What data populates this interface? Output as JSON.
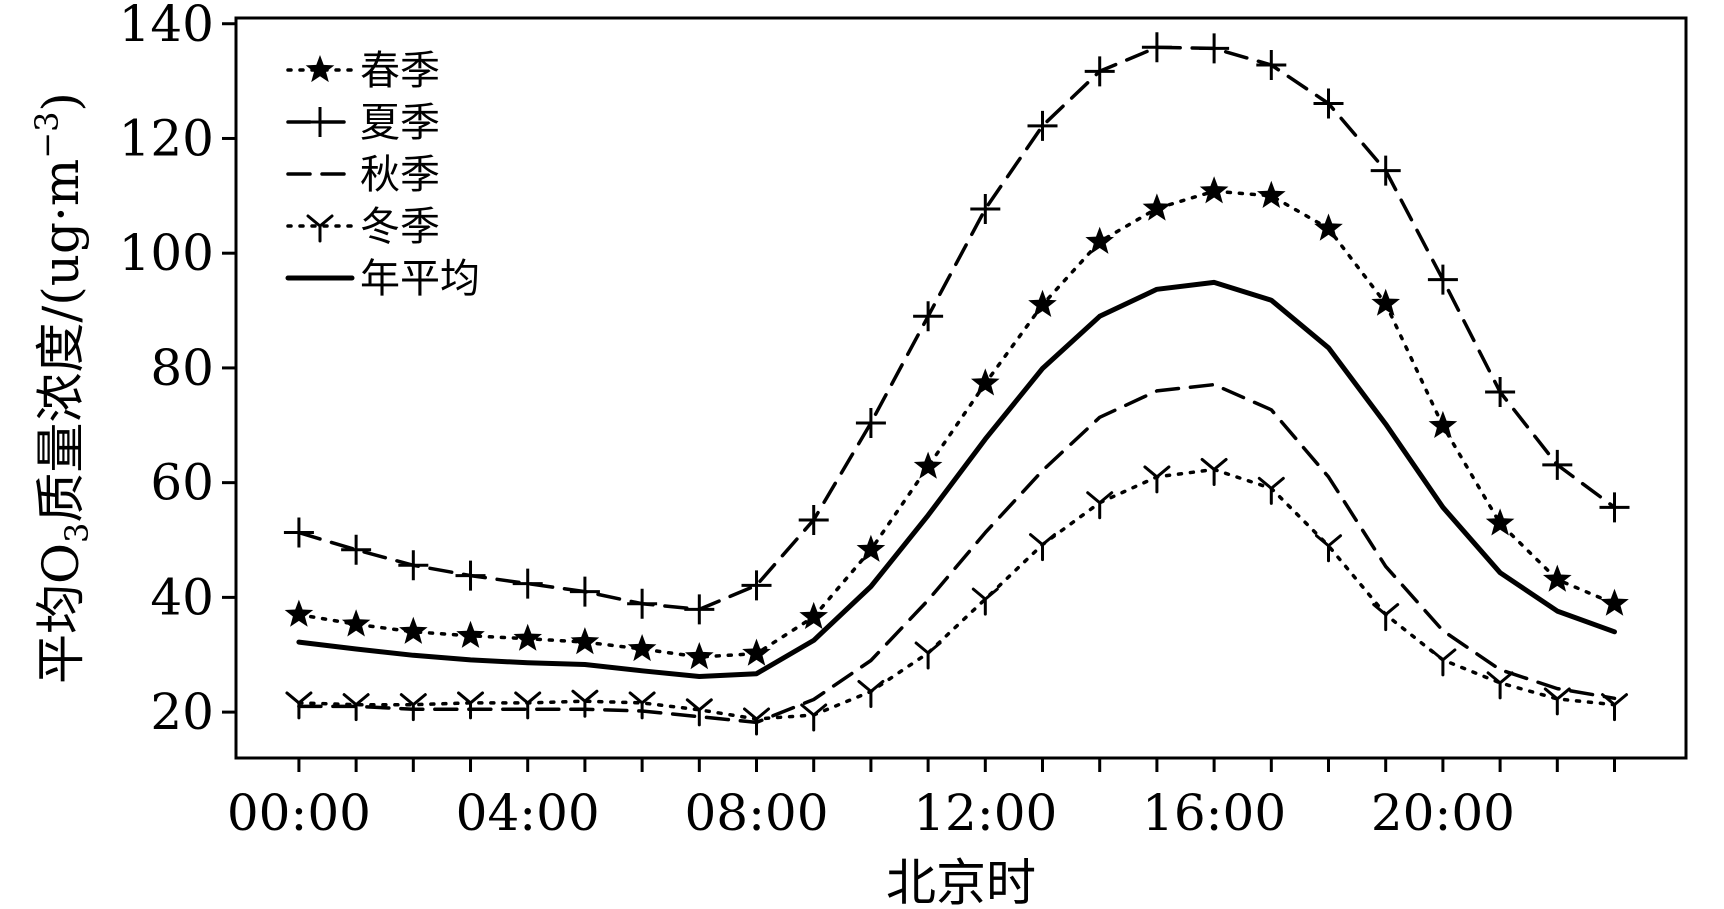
{
  "chart_data": {
    "type": "line",
    "title": "",
    "xlabel": "北京时",
    "ylabel": "平均O₃质量浓度/(ug·m⁻³)",
    "ylabel_parts": {
      "prefix": "平均O",
      "subscript": "3",
      "middle": "质量浓度/(ug·m",
      "superscript": "−3",
      "suffix": ")"
    },
    "x": [
      0,
      1,
      2,
      3,
      4,
      5,
      6,
      7,
      8,
      9,
      10,
      11,
      12,
      13,
      14,
      15,
      16,
      17,
      18,
      19,
      20,
      21,
      22,
      23
    ],
    "xlim": [
      -1.1,
      24.25
    ],
    "ylim": [
      12,
      141
    ],
    "xticks": [
      0,
      4,
      8,
      12,
      16,
      20
    ],
    "xticklabels": [
      "00:00",
      "04:00",
      "08:00",
      "12:00",
      "16:00",
      "20:00"
    ],
    "yticks": [
      20,
      40,
      60,
      80,
      100,
      120,
      140
    ],
    "yticklabels": [
      "20",
      "40",
      "60",
      "80",
      "100",
      "120",
      "140"
    ],
    "grid": false,
    "legend_position": "top-left",
    "series": [
      {
        "name": "春季",
        "style": "dotted",
        "marker": "star",
        "values": [
          37,
          35.3,
          34,
          33.3,
          32.8,
          32.2,
          31,
          29.6,
          30.2,
          36.6,
          48.3,
          62.8,
          77.3,
          91,
          102,
          107.8,
          110.8,
          110,
          104.3,
          91.2,
          69.9,
          52.9,
          43.1,
          38.9
        ]
      },
      {
        "name": "夏季",
        "style": "dashed",
        "marker": "plus",
        "values": [
          51.3,
          48.3,
          45.6,
          43.8,
          42.4,
          41,
          38.9,
          37.9,
          42.1,
          53.5,
          70.4,
          89,
          107.7,
          122.2,
          131.7,
          135.9,
          135.7,
          132.8,
          126.1,
          114.4,
          95.4,
          75.8,
          63.1,
          55.7
        ]
      },
      {
        "name": "秋季",
        "style": "dashed",
        "marker": "none",
        "values": [
          21,
          21,
          20.5,
          20.5,
          20.5,
          20.5,
          20.2,
          19.2,
          18.2,
          22.2,
          29,
          39.5,
          51.3,
          62.1,
          71.4,
          76,
          77.1,
          72.7,
          61,
          45.4,
          34.2,
          27.4,
          24.1,
          22.4
        ]
      },
      {
        "name": "冬季",
        "style": "dotted",
        "marker": "tri-down",
        "values": [
          21.6,
          21.3,
          21.3,
          21.6,
          21.6,
          21.9,
          21.6,
          20.4,
          18.8,
          19.5,
          23.6,
          30.3,
          39.7,
          49.2,
          56.5,
          61,
          62.3,
          59,
          49,
          37,
          29.1,
          25.1,
          22.3,
          21.3
        ]
      },
      {
        "name": "年平均",
        "style": "solid",
        "marker": "none",
        "values": [
          32.2,
          31,
          29.9,
          29.1,
          28.6,
          28.3,
          27.2,
          26.2,
          26.7,
          32.5,
          41.9,
          54.3,
          67.6,
          79.9,
          89,
          93.7,
          94.9,
          91.8,
          83.5,
          70.2,
          55.7,
          44.3,
          37.6,
          34
        ]
      }
    ]
  }
}
